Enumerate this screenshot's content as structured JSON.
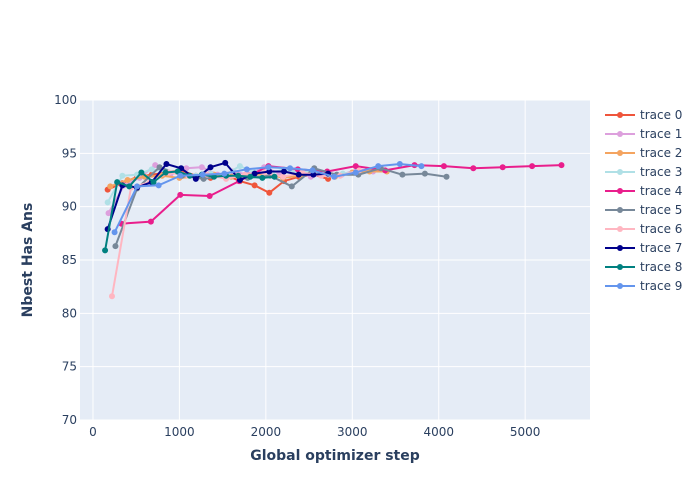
{
  "chart_data": {
    "type": "line",
    "title": "",
    "xlabel": "Global optimizer step",
    "ylabel": "Nbest Has Ans",
    "xlim": [
      -150,
      5750
    ],
    "ylim": [
      70,
      100
    ],
    "x_ticks": [
      0,
      1000,
      2000,
      3000,
      4000,
      5000
    ],
    "y_ticks": [
      70,
      75,
      80,
      85,
      90,
      95,
      100
    ],
    "grid": true,
    "legend_position": "right",
    "series": [
      {
        "name": "trace 0",
        "color": "#ef553b",
        "x": [
          170,
          340,
          510,
          680,
          850,
          1020,
          1190,
          1360,
          1530,
          1700,
          1870,
          2040,
          2210,
          2380,
          2550,
          2720
        ],
        "y": [
          91.6,
          92.2,
          92.8,
          93.0,
          93.2,
          93.4,
          92.9,
          92.7,
          93.0,
          92.4,
          92.0,
          91.3,
          92.4,
          92.8,
          93.0,
          92.6
        ]
      },
      {
        "name": "trace 1",
        "color": "#dda0dd",
        "x": [
          180,
          360,
          540,
          720,
          900,
          1080,
          1260,
          1440,
          1620,
          1800,
          1980,
          2160,
          2340,
          2520,
          2700,
          2880,
          3060,
          3240
        ],
        "y": [
          89.4,
          92.0,
          92.7,
          93.9,
          93.1,
          93.6,
          93.7,
          93.0,
          93.3,
          93.0,
          93.7,
          93.1,
          93.4,
          92.8,
          93.1,
          93.0,
          93.5,
          93.3
        ]
      },
      {
        "name": "trace 2",
        "color": "#f4a460",
        "x": [
          200,
          400,
          600,
          800,
          1000,
          1200,
          1400,
          1600,
          1800,
          2000,
          2200,
          2400,
          2600,
          2800,
          3000,
          3200,
          3400
        ],
        "y": [
          91.9,
          92.5,
          92.8,
          92.9,
          92.7,
          92.8,
          93.0,
          92.8,
          92.9,
          93.1,
          92.7,
          92.9,
          93.2,
          92.8,
          93.2,
          93.3,
          93.3
        ]
      },
      {
        "name": "trace 3",
        "color": "#b0e0e6",
        "x": [
          170,
          340,
          510,
          680,
          850,
          1020,
          1190,
          1360,
          1530,
          1700,
          1870,
          2040,
          2210,
          2380,
          2550,
          2720,
          2890,
          3060
        ],
        "y": [
          90.4,
          92.9,
          93.0,
          93.5,
          93.3,
          93.0,
          92.9,
          93.1,
          93.0,
          93.8,
          93.2,
          93.1,
          93.5,
          93.2,
          93.3,
          93.0,
          93.1,
          93.3
        ]
      },
      {
        "name": "trace 4",
        "color": "#e91e8c",
        "x": [
          330,
          670,
          1010,
          1350,
          1690,
          2030,
          2370,
          2710,
          3040,
          3380,
          3720,
          4060,
          4400,
          4740,
          5080,
          5420
        ],
        "y": [
          88.4,
          88.6,
          91.1,
          91.0,
          92.4,
          93.8,
          93.5,
          93.3,
          93.8,
          93.4,
          93.9,
          93.8,
          93.6,
          93.7,
          93.8,
          93.9
        ]
      },
      {
        "name": "trace 5",
        "color": "#778899",
        "x": [
          260,
          510,
          770,
          1030,
          1280,
          1540,
          1790,
          2050,
          2300,
          2560,
          2820,
          3070,
          3330,
          3580,
          3840,
          4090
        ],
        "y": [
          86.3,
          91.7,
          93.7,
          92.9,
          92.6,
          92.9,
          92.7,
          92.9,
          91.9,
          93.6,
          93.0,
          93.0,
          93.6,
          93.0,
          93.1,
          92.8
        ]
      },
      {
        "name": "trace 6",
        "color": "#ffb6c1",
        "x": [
          220,
          440,
          660,
          880,
          1100,
          1320,
          1540,
          1760,
          1980,
          2200,
          2420,
          2640,
          2860,
          3080
        ],
        "y": [
          81.6,
          91.8,
          92.3,
          93.2,
          92.9,
          93.0,
          92.6,
          93.0,
          93.2,
          92.8,
          93.2,
          92.9,
          92.9,
          93.4
        ]
      },
      {
        "name": "trace 7",
        "color": "#00008b",
        "x": [
          170,
          340,
          510,
          680,
          850,
          1020,
          1190,
          1360,
          1530,
          1700,
          1870,
          2040,
          2210,
          2380,
          2550,
          2720
        ],
        "y": [
          87.9,
          92.0,
          91.8,
          92.3,
          94.0,
          93.6,
          92.6,
          93.7,
          94.1,
          92.5,
          93.1,
          93.3,
          93.3,
          93.0,
          93.0,
          93.1
        ]
      },
      {
        "name": "trace 8",
        "color": "#008080",
        "x": [
          140,
          280,
          420,
          560,
          700,
          840,
          980,
          1120,
          1260,
          1400,
          1540,
          1680,
          1820,
          1960,
          2100
        ],
        "y": [
          85.9,
          92.3,
          91.9,
          93.2,
          92.3,
          93.2,
          93.3,
          92.9,
          93.0,
          92.8,
          92.9,
          92.9,
          92.8,
          92.7,
          92.8
        ]
      },
      {
        "name": "trace 9",
        "color": "#6495ed",
        "x": [
          250,
          510,
          760,
          1010,
          1270,
          1520,
          1780,
          2030,
          2280,
          2540,
          2790,
          3040,
          3300,
          3550,
          3800
        ],
        "y": [
          87.6,
          91.9,
          92.0,
          92.9,
          93.0,
          93.1,
          93.5,
          93.7,
          93.6,
          93.4,
          92.8,
          93.2,
          93.8,
          94.0,
          93.8
        ]
      }
    ]
  }
}
